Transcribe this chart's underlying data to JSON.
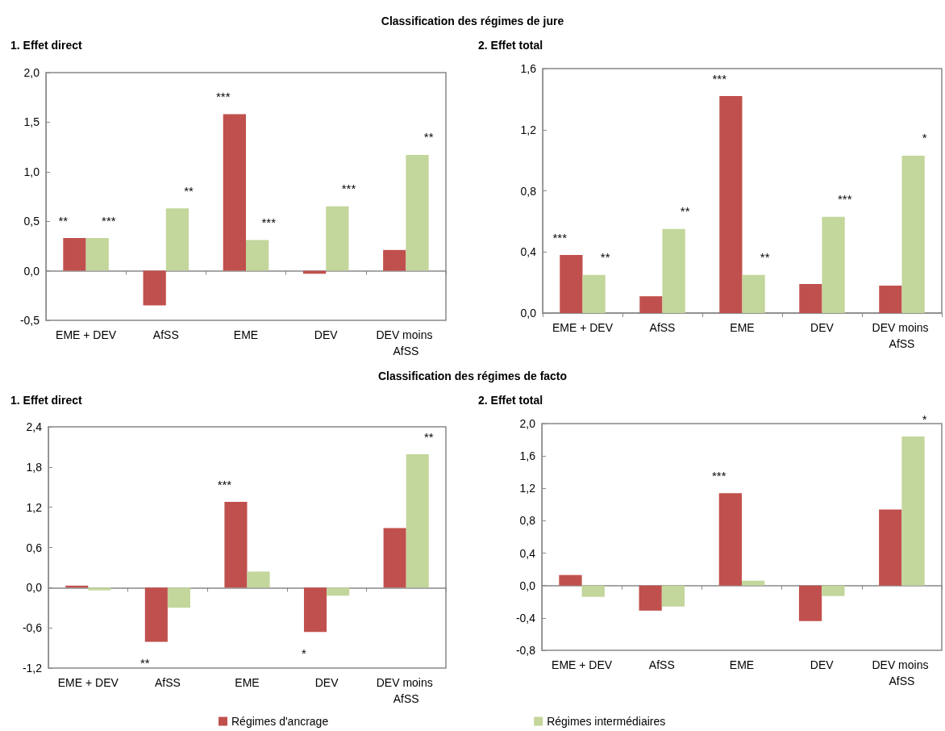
{
  "chart_data": [
    {
      "type": "bar",
      "title": "1. Effet direct",
      "annotations": [
        "Classification des régimes de jure",
        {
          "text": "**",
          "x": "EME + DEV",
          "y": 0.33
        },
        {
          "text": "***",
          "x": "EME + DEV",
          "y": 0.33
        },
        {
          "text": "**",
          "x": "AfSS",
          "y": 0.63
        },
        {
          "text": "***",
          "x": "EME",
          "y": 1.58
        },
        {
          "text": "***",
          "x": "EME",
          "y": 0.31
        },
        {
          "text": "***",
          "x": "DEV",
          "y": 0.65
        },
        {
          "text": "**",
          "x": "DEV moins AfSS",
          "y": 1.17
        }
      ],
      "categories": [
        "EME + DEV",
        "AfSS",
        "EME",
        "DEV",
        "DEV moins AfSS"
      ],
      "series": [
        {
          "color": "#c0504d",
          "values": [
            0.33,
            -0.35,
            1.58,
            -0.03,
            0.21
          ]
        },
        {
          "color": "#c3d69b",
          "values": [
            0.33,
            0.63,
            0.31,
            0.65,
            1.17
          ]
        }
      ],
      "ylim": [
        -0.5,
        2
      ],
      "yticks": [
        {
          "value": -0.5,
          "label": "-0,5"
        },
        {
          "value": 0,
          "label": "0,0"
        },
        {
          "value": 0.5,
          "label": "0,5"
        },
        {
          "value": 1,
          "label": "1,0"
        },
        {
          "value": 1.5,
          "label": "1,5"
        },
        {
          "value": 2,
          "label": "2,0"
        }
      ]
    },
    {
      "type": "bar",
      "title": "2. Effet total",
      "annotations": [
        {
          "text": "***",
          "x": "EME + DEV",
          "y": 0.38
        },
        {
          "text": "**",
          "x": "EME + DEV",
          "y": 0.25
        },
        {
          "text": "**",
          "x": "AfSS",
          "y": 0.55
        },
        {
          "text": "***",
          "x": "EME",
          "y": 1.42
        },
        {
          "text": "**",
          "x": "EME",
          "y": 0.25
        },
        {
          "text": "***",
          "x": "DEV",
          "y": 0.63
        },
        {
          "text": "*",
          "x": "DEV moins AfSS",
          "y": 1.03
        }
      ],
      "categories": [
        "EME + DEV",
        "AfSS",
        "EME",
        "DEV",
        "DEV moins AfSS"
      ],
      "series": [
        {
          "color": "#c0504d",
          "values": [
            0.38,
            0.11,
            1.42,
            0.19,
            0.18
          ]
        },
        {
          "color": "#c3d69b",
          "values": [
            0.25,
            0.55,
            0.25,
            0.63,
            1.03
          ]
        }
      ],
      "ylim": [
        0,
        1.6
      ],
      "yticks": [
        {
          "value": 0,
          "label": "0,0"
        },
        {
          "value": 0.4,
          "label": "0,4"
        },
        {
          "value": 0.8,
          "label": "0,8"
        },
        {
          "value": 1.2,
          "label": "1,2"
        },
        {
          "value": 1.6,
          "label": "1,6"
        }
      ]
    },
    {
      "type": "bar",
      "title": "1. Effet direct",
      "annotations": [
        "Classification des régimes de facto",
        {
          "text": "**",
          "x": "AfSS",
          "y": -0.81
        },
        {
          "text": "***",
          "x": "EME",
          "y": 1.28
        },
        {
          "text": "*",
          "x": "DEV",
          "y": -0.66
        },
        {
          "text": "**",
          "x": "DEV moins AfSS",
          "y": 1.99
        }
      ],
      "categories": [
        "EME + DEV",
        "AfSS",
        "EME",
        "DEV",
        "DEV moins AfSS"
      ],
      "series": [
        {
          "name": "Régimes d'ancrage",
          "color": "#c0504d",
          "values": [
            0.03,
            -0.81,
            1.28,
            -0.66,
            0.89
          ]
        },
        {
          "name": "Régimes intermédiaires",
          "color": "#c3d69b",
          "values": [
            -0.04,
            -0.3,
            0.24,
            -0.12,
            1.99
          ]
        }
      ],
      "ylim": [
        -1.2,
        2.4
      ],
      "yticks": [
        {
          "value": -1.2,
          "label": "-1,2"
        },
        {
          "value": -0.6,
          "label": "-0,6"
        },
        {
          "value": 0,
          "label": "0,0"
        },
        {
          "value": 0.6,
          "label": "0,6"
        },
        {
          "value": 1.2,
          "label": "1,2"
        },
        {
          "value": 1.8,
          "label": "1,8"
        },
        {
          "value": 2.4,
          "label": "2,4"
        }
      ],
      "legend": "bottom"
    },
    {
      "type": "bar",
      "title": "2. Effet total",
      "annotations": [
        {
          "text": "***",
          "x": "EME",
          "y": 1.14
        },
        {
          "text": "*",
          "x": "DEV moins AfSS",
          "y": 1.84
        }
      ],
      "categories": [
        "EME + DEV",
        "AfSS",
        "EME",
        "DEV",
        "DEV moins AfSS"
      ],
      "series": [
        {
          "color": "#c0504d",
          "values": [
            0.13,
            -0.31,
            1.14,
            -0.44,
            0.94
          ]
        },
        {
          "color": "#c3d69b",
          "values": [
            -0.14,
            -0.26,
            0.06,
            -0.13,
            1.84
          ]
        }
      ],
      "ylim": [
        -0.8,
        2
      ],
      "yticks": [
        {
          "value": -0.8,
          "label": "-0,8"
        },
        {
          "value": -0.4,
          "label": "-0,4"
        },
        {
          "value": 0,
          "label": "0,0"
        },
        {
          "value": 0.4,
          "label": "0,4"
        },
        {
          "value": 0.8,
          "label": "0,8"
        },
        {
          "value": 1.2,
          "label": "1,2"
        },
        {
          "value": 1.6,
          "label": "1,6"
        },
        {
          "value": 2,
          "label": "2,0"
        }
      ]
    }
  ]
}
